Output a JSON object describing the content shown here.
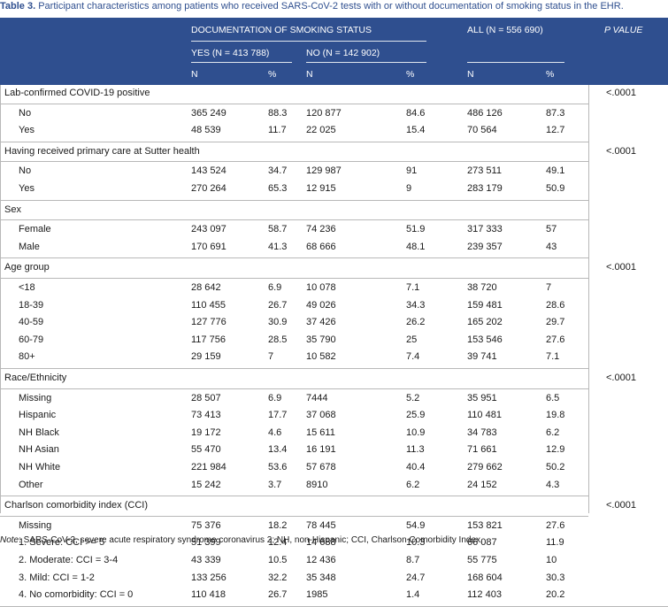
{
  "caption": {
    "label": "Table 3.",
    "title": "Participant characteristics among patients who received SARS-CoV-2 tests with or without documentation of smoking status in the EHR."
  },
  "header": {
    "group_doc": "DOCUMENTATION OF SMOKING STATUS",
    "group_yes": "YES (N = 413 788)",
    "group_no": "NO (N = 142 902)",
    "group_all": "ALL (N = 556 690)",
    "pvalue": "P VALUE",
    "n": "N",
    "pct": "%"
  },
  "sections": [
    {
      "title": "Lab-confirmed COVID-19 positive",
      "pvalue": "<.0001",
      "rows": [
        {
          "label": "No",
          "yes_n": "365 249",
          "yes_pct": "88.3",
          "no_n": "120 877",
          "no_pct": "84.6",
          "all_n": "486 126",
          "all_pct": "87.3"
        },
        {
          "label": "Yes",
          "yes_n": "48 539",
          "yes_pct": "11.7",
          "no_n": "22 025",
          "no_pct": "15.4",
          "all_n": "70 564",
          "all_pct": "12.7"
        }
      ]
    },
    {
      "title": "Having received primary care at Sutter health",
      "pvalue": "<.0001",
      "rows": [
        {
          "label": "No",
          "yes_n": "143 524",
          "yes_pct": "34.7",
          "no_n": "129 987",
          "no_pct": "91",
          "all_n": "273 511",
          "all_pct": "49.1"
        },
        {
          "label": "Yes",
          "yes_n": "270 264",
          "yes_pct": "65.3",
          "no_n": "12 915",
          "no_pct": "9",
          "all_n": "283 179",
          "all_pct": "50.9"
        }
      ]
    },
    {
      "title": "Sex",
      "pvalue": "",
      "rows": [
        {
          "label": "Female",
          "yes_n": "243 097",
          "yes_pct": "58.7",
          "no_n": "74 236",
          "no_pct": "51.9",
          "all_n": "317 333",
          "all_pct": "57"
        },
        {
          "label": "Male",
          "yes_n": "170 691",
          "yes_pct": "41.3",
          "no_n": "68 666",
          "no_pct": "48.1",
          "all_n": "239 357",
          "all_pct": "43"
        }
      ]
    },
    {
      "title": "Age group",
      "pvalue": "<.0001",
      "rows": [
        {
          "label": "<18",
          "yes_n": "28 642",
          "yes_pct": "6.9",
          "no_n": "10 078",
          "no_pct": "7.1",
          "all_n": "38 720",
          "all_pct": "7"
        },
        {
          "label": "18-39",
          "yes_n": "110 455",
          "yes_pct": "26.7",
          "no_n": "49 026",
          "no_pct": "34.3",
          "all_n": "159 481",
          "all_pct": "28.6"
        },
        {
          "label": "40-59",
          "yes_n": "127 776",
          "yes_pct": "30.9",
          "no_n": "37 426",
          "no_pct": "26.2",
          "all_n": "165 202",
          "all_pct": "29.7"
        },
        {
          "label": "60-79",
          "yes_n": "117 756",
          "yes_pct": "28.5",
          "no_n": "35 790",
          "no_pct": "25",
          "all_n": "153 546",
          "all_pct": "27.6"
        },
        {
          "label": "80+",
          "yes_n": "29 159",
          "yes_pct": "7",
          "no_n": "10 582",
          "no_pct": "7.4",
          "all_n": "39 741",
          "all_pct": "7.1"
        }
      ]
    },
    {
      "title": "Race/Ethnicity",
      "pvalue": "<.0001",
      "rows": [
        {
          "label": "Missing",
          "yes_n": "28 507",
          "yes_pct": "6.9",
          "no_n": "7444",
          "no_pct": "5.2",
          "all_n": "35 951",
          "all_pct": "6.5"
        },
        {
          "label": "Hispanic",
          "yes_n": "73 413",
          "yes_pct": "17.7",
          "no_n": "37 068",
          "no_pct": "25.9",
          "all_n": "110 481",
          "all_pct": "19.8"
        },
        {
          "label": "NH Black",
          "yes_n": "19 172",
          "yes_pct": "4.6",
          "no_n": "15 611",
          "no_pct": "10.9",
          "all_n": "34 783",
          "all_pct": "6.2"
        },
        {
          "label": "NH Asian",
          "yes_n": "55 470",
          "yes_pct": "13.4",
          "no_n": "16 191",
          "no_pct": "11.3",
          "all_n": "71 661",
          "all_pct": "12.9"
        },
        {
          "label": "NH White",
          "yes_n": "221 984",
          "yes_pct": "53.6",
          "no_n": "57 678",
          "no_pct": "40.4",
          "all_n": "279 662",
          "all_pct": "50.2"
        },
        {
          "label": "Other",
          "yes_n": "15 242",
          "yes_pct": "3.7",
          "no_n": "8910",
          "no_pct": "6.2",
          "all_n": "24 152",
          "all_pct": "4.3"
        }
      ]
    },
    {
      "title": "Charlson comorbidity index (CCI)",
      "pvalue": "<.0001",
      "rows": [
        {
          "label": "Missing",
          "yes_n": "75 376",
          "yes_pct": "18.2",
          "no_n": "78 445",
          "no_pct": "54.9",
          "all_n": "153 821",
          "all_pct": "27.6"
        },
        {
          "label": "1. Severe: CCI >= 5",
          "yes_n": "51 399",
          "yes_pct": "12.4",
          "no_n": "14 688",
          "no_pct": "10.3",
          "all_n": "66 087",
          "all_pct": "11.9"
        },
        {
          "label": "2. Moderate: CCI = 3-4",
          "yes_n": "43 339",
          "yes_pct": "10.5",
          "no_n": "12 436",
          "no_pct": "8.7",
          "all_n": "55 775",
          "all_pct": "10"
        },
        {
          "label": "3. Mild: CCI = 1-2",
          "yes_n": "133 256",
          "yes_pct": "32.2",
          "no_n": "35 348",
          "no_pct": "24.7",
          "all_n": "168 604",
          "all_pct": "30.3"
        },
        {
          "label": "4. No comorbidity: CCI = 0",
          "yes_n": "110 418",
          "yes_pct": "26.7",
          "no_n": "1985",
          "no_pct": "1.4",
          "all_n": "112 403",
          "all_pct": "20.2"
        }
      ]
    }
  ],
  "note": {
    "label": "Note",
    "text": ": SARS-CoV-2, severe acute respiratory syndrome coronavirus 2; NH, non-Hispanic; CCI, Charlson Comorbidity Index."
  },
  "colors": {
    "header_bg": "#2f4f8f",
    "caption_accent": "#2f4f8f"
  }
}
